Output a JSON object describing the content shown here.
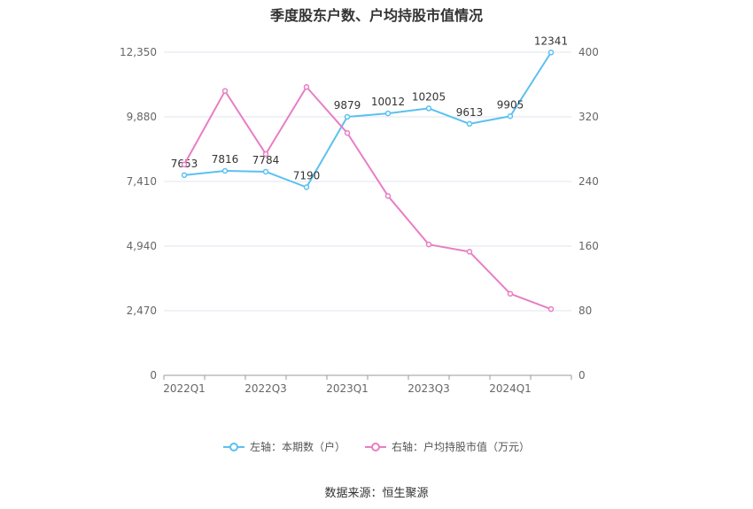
{
  "title": "季度股东户数、户均持股市值情况",
  "source_text": "数据来源：恒生聚源",
  "legend": [
    {
      "label": "左轴：本期数（户）",
      "color": "#5bc0f0"
    },
    {
      "label": "右轴：户均持股市值（万元）",
      "color": "#e87ec4"
    }
  ],
  "chart_data": {
    "type": "line",
    "title": "季度股东户数、户均持股市值情况",
    "xlabel": "",
    "x_tick_labels": [
      "2022Q1",
      "2022Q3",
      "2023Q1",
      "2023Q3",
      "2024Q1"
    ],
    "categories": [
      "2022Q1",
      "2022Q2",
      "2022Q3",
      "2022Q4",
      "2023Q1",
      "2023Q2",
      "2023Q3",
      "2023Q4",
      "2024Q1",
      "2024Q2"
    ],
    "left_axis": {
      "ticks": [
        0,
        2470,
        4940,
        7410,
        9880,
        12350
      ],
      "tick_labels": [
        "0",
        "2,470",
        "4,940",
        "7,410",
        "9,880",
        "12,350"
      ],
      "ylim": [
        0,
        12350
      ]
    },
    "right_axis": {
      "ticks": [
        0,
        80,
        160,
        240,
        320,
        400
      ],
      "tick_labels": [
        "0",
        "80",
        "160",
        "240",
        "320",
        "400"
      ],
      "ylim": [
        0,
        400
      ]
    },
    "series": [
      {
        "name": "左轴：本期数（户）",
        "axis": "left",
        "color": "#5bc0f0",
        "values": [
          7653,
          7816,
          7784,
          7190,
          9879,
          10012,
          10205,
          9613,
          9905,
          12341
        ],
        "labels": [
          "7653",
          "7816",
          "7784",
          "7190",
          "9879",
          "10012",
          "10205",
          "9613",
          "9905",
          "12341"
        ]
      },
      {
        "name": "右轴：户均持股市值（万元）",
        "axis": "right",
        "color": "#e87ec4",
        "values": [
          261,
          352,
          274,
          357,
          300,
          222,
          162,
          153,
          101,
          82
        ]
      }
    ],
    "grid": true,
    "legend_position": "bottom"
  }
}
